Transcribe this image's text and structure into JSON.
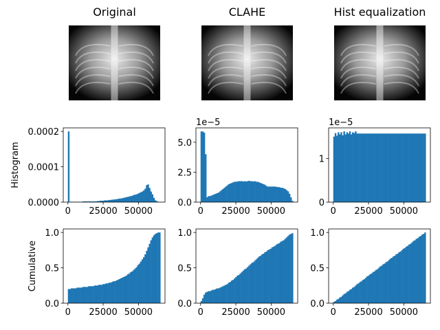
{
  "chart_data": [
    {
      "type": "image",
      "title": "Original"
    },
    {
      "type": "image",
      "title": "CLAHE"
    },
    {
      "type": "image",
      "title": "Hist equalization"
    },
    {
      "type": "histogram",
      "ylabel": "Histogram",
      "color": "#1f77b4",
      "bins": [
        0,
        1024,
        2048,
        3072,
        4096,
        5120,
        6144,
        7168,
        8192,
        9216,
        10240,
        11264,
        12288,
        13312,
        14336,
        15360,
        16384,
        17408,
        18432,
        19456,
        20480,
        21504,
        22528,
        23552,
        24576,
        25600,
        26624,
        27648,
        28672,
        29696,
        30720,
        31744,
        32768,
        33792,
        34816,
        35840,
        36864,
        37888,
        38912,
        39936,
        40960,
        41984,
        43008,
        44032,
        45056,
        46080,
        47104,
        48128,
        49152,
        50176,
        51200,
        52224,
        53248,
        54272,
        55296,
        56320,
        57344,
        58368,
        59392,
        60416,
        61440,
        62464,
        63488,
        64512,
        65536
      ],
      "values": [
        0.0002,
        1e-06,
        1e-06,
        1e-06,
        1e-06,
        1e-06,
        1e-06,
        1e-06,
        1e-06,
        1e-06,
        2e-06,
        2e-06,
        2e-06,
        2e-06,
        2e-06,
        2e-06,
        2e-06,
        2e-06,
        2e-06,
        2e-06,
        3e-06,
        3e-06,
        4e-06,
        4e-06,
        4e-06,
        5e-06,
        5e-06,
        5e-06,
        6e-06,
        6e-06,
        7e-06,
        7e-06,
        8e-06,
        8e-06,
        9e-06,
        1e-05,
        1e-05,
        1.1e-05,
        1.2e-05,
        1.3e-05,
        1.4e-05,
        1.5e-05,
        1.6e-05,
        1.7e-05,
        1.8e-05,
        2e-05,
        2.1e-05,
        2.2e-05,
        2.4e-05,
        2.6e-05,
        2.8e-05,
        3e-05,
        3.3e-05,
        3.8e-05,
        4.8e-05,
        5e-05,
        4e-05,
        3e-05,
        2.2e-05,
        1.2e-05,
        5e-06,
        3e-06,
        1e-06,
        1e-06
      ],
      "xlim": [
        -3277,
        68813
      ],
      "xticks": [
        0,
        25000,
        50000
      ],
      "ylim": [
        0,
        0.00021
      ],
      "yticks": [
        {
          "value": 0,
          "label": "0.0000"
        },
        {
          "value": 0.0001,
          "label": "0.0001"
        },
        {
          "value": 0.0002,
          "label": "0.0002"
        }
      ]
    },
    {
      "type": "histogram",
      "offset_text": "1e−5",
      "color": "#1f77b4",
      "bins": [
        0,
        1024,
        2048,
        3072,
        4096,
        5120,
        6144,
        7168,
        8192,
        9216,
        10240,
        11264,
        12288,
        13312,
        14336,
        15360,
        16384,
        17408,
        18432,
        19456,
        20480,
        21504,
        22528,
        23552,
        24576,
        25600,
        26624,
        27648,
        28672,
        29696,
        30720,
        31744,
        32768,
        33792,
        34816,
        35840,
        36864,
        37888,
        38912,
        39936,
        40960,
        41984,
        43008,
        44032,
        45056,
        46080,
        47104,
        48128,
        49152,
        50176,
        51200,
        52224,
        53248,
        54272,
        55296,
        56320,
        57344,
        58368,
        59392,
        60416,
        61440,
        62464,
        63488,
        64512,
        65536
      ],
      "values": [
        5.9,
        5.9,
        5.8,
        4.0,
        0.4,
        0.5,
        0.5,
        0.55,
        0.6,
        0.65,
        0.7,
        0.75,
        0.8,
        0.9,
        1.0,
        1.1,
        1.2,
        1.3,
        1.4,
        1.5,
        1.55,
        1.6,
        1.65,
        1.7,
        1.7,
        1.72,
        1.75,
        1.75,
        1.75,
        1.72,
        1.75,
        1.72,
        1.75,
        1.78,
        1.75,
        1.75,
        1.72,
        1.75,
        1.7,
        1.7,
        1.65,
        1.6,
        1.55,
        1.5,
        1.45,
        1.35,
        1.3,
        1.3,
        1.3,
        1.3,
        1.3,
        1.3,
        1.28,
        1.25,
        1.25,
        1.2,
        1.2,
        1.15,
        1.1,
        1.0,
        0.9,
        0.7,
        0.4,
        0.1
      ],
      "xlim": [
        -3277,
        68813
      ],
      "xticks": [
        0,
        25000,
        50000
      ],
      "ylim": [
        0,
        6.2
      ],
      "yticks": [
        {
          "value": 0,
          "label": "0.0"
        },
        2.5,
        {
          "value": 5,
          "label": "5.0"
        }
      ]
    },
    {
      "type": "histogram",
      "offset_text": "1e−5",
      "color": "#1f77b4",
      "bins": [
        0,
        1024,
        2048,
        3072,
        4096,
        5120,
        6144,
        7168,
        8192,
        9216,
        10240,
        11264,
        12288,
        13312,
        14336,
        15360,
        16384,
        17408,
        18432,
        19456,
        20480,
        21504,
        22528,
        23552,
        24576,
        25600,
        26624,
        27648,
        28672,
        29696,
        30720,
        31744,
        32768,
        33792,
        34816,
        35840,
        36864,
        37888,
        38912,
        39936,
        40960,
        41984,
        43008,
        44032,
        45056,
        46080,
        47104,
        48128,
        49152,
        50176,
        51200,
        52224,
        53248,
        54272,
        55296,
        56320,
        57344,
        58368,
        59392,
        60416,
        61440,
        62464,
        63488,
        64512,
        65536
      ],
      "values": [
        1.5,
        1.58,
        1.52,
        1.6,
        1.55,
        1.6,
        1.53,
        1.62,
        1.55,
        1.6,
        1.57,
        1.62,
        1.55,
        1.6,
        1.58,
        1.62,
        1.57,
        1.57,
        1.57,
        1.57,
        1.57,
        1.57,
        1.57,
        1.57,
        1.57,
        1.57,
        1.57,
        1.57,
        1.57,
        1.57,
        1.57,
        1.57,
        1.57,
        1.57,
        1.57,
        1.57,
        1.57,
        1.57,
        1.57,
        1.57,
        1.57,
        1.57,
        1.57,
        1.57,
        1.57,
        1.57,
        1.57,
        1.57,
        1.57,
        1.57,
        1.57,
        1.57,
        1.57,
        1.57,
        1.57,
        1.57,
        1.57,
        1.57,
        1.57,
        1.57,
        1.57,
        1.57,
        1.57,
        1.57
      ],
      "xlim": [
        -3277,
        68813
      ],
      "xticks": [
        0,
        25000,
        50000
      ],
      "ylim": [
        0,
        1.7
      ],
      "yticks": [
        0,
        1
      ]
    },
    {
      "type": "histogram",
      "ylabel": "Cumulative",
      "color": "#1f77b4",
      "bins": [
        0,
        1024,
        2048,
        3072,
        4096,
        5120,
        6144,
        7168,
        8192,
        9216,
        10240,
        11264,
        12288,
        13312,
        14336,
        15360,
        16384,
        17408,
        18432,
        19456,
        20480,
        21504,
        22528,
        23552,
        24576,
        25600,
        26624,
        27648,
        28672,
        29696,
        30720,
        31744,
        32768,
        33792,
        34816,
        35840,
        36864,
        37888,
        38912,
        39936,
        40960,
        41984,
        43008,
        44032,
        45056,
        46080,
        47104,
        48128,
        49152,
        50176,
        51200,
        52224,
        53248,
        54272,
        55296,
        56320,
        57344,
        58368,
        59392,
        60416,
        61440,
        62464,
        63488,
        64512,
        65536
      ],
      "values": [
        0.2,
        0.2,
        0.21,
        0.21,
        0.21,
        0.21,
        0.22,
        0.22,
        0.22,
        0.22,
        0.23,
        0.23,
        0.23,
        0.23,
        0.24,
        0.24,
        0.24,
        0.24,
        0.25,
        0.25,
        0.25,
        0.26,
        0.26,
        0.26,
        0.27,
        0.27,
        0.28,
        0.28,
        0.29,
        0.29,
        0.3,
        0.31,
        0.31,
        0.32,
        0.33,
        0.34,
        0.35,
        0.36,
        0.37,
        0.38,
        0.39,
        0.41,
        0.42,
        0.44,
        0.45,
        0.47,
        0.49,
        0.51,
        0.54,
        0.56,
        0.59,
        0.62,
        0.65,
        0.69,
        0.74,
        0.79,
        0.84,
        0.89,
        0.93,
        0.96,
        0.98,
        0.99,
        1.0,
        1.0
      ],
      "xlim": [
        -3277,
        68813
      ],
      "xticks": [
        0,
        25000,
        50000
      ],
      "ylim": [
        0,
        1.05
      ],
      "yticks": [
        {
          "value": 0,
          "label": "0.0"
        },
        0.5,
        {
          "value": 1,
          "label": "1.0"
        }
      ]
    },
    {
      "type": "histogram",
      "color": "#1f77b4",
      "bins": [
        0,
        1024,
        2048,
        3072,
        4096,
        5120,
        6144,
        7168,
        8192,
        9216,
        10240,
        11264,
        12288,
        13312,
        14336,
        15360,
        16384,
        17408,
        18432,
        19456,
        20480,
        21504,
        22528,
        23552,
        24576,
        25600,
        26624,
        27648,
        28672,
        29696,
        30720,
        31744,
        32768,
        33792,
        34816,
        35840,
        36864,
        37888,
        38912,
        39936,
        40960,
        41984,
        43008,
        44032,
        45056,
        46080,
        47104,
        48128,
        49152,
        50176,
        51200,
        52224,
        53248,
        54272,
        55296,
        56320,
        57344,
        58368,
        59392,
        60416,
        61440,
        62464,
        63488,
        64512,
        65536
      ],
      "values": [
        0.03,
        0.07,
        0.12,
        0.15,
        0.16,
        0.17,
        0.17,
        0.18,
        0.19,
        0.19,
        0.2,
        0.21,
        0.21,
        0.22,
        0.23,
        0.24,
        0.25,
        0.26,
        0.27,
        0.29,
        0.3,
        0.32,
        0.33,
        0.35,
        0.37,
        0.39,
        0.4,
        0.42,
        0.44,
        0.46,
        0.48,
        0.49,
        0.51,
        0.53,
        0.55,
        0.57,
        0.58,
        0.6,
        0.62,
        0.64,
        0.66,
        0.67,
        0.69,
        0.7,
        0.72,
        0.73,
        0.75,
        0.76,
        0.77,
        0.79,
        0.8,
        0.81,
        0.83,
        0.84,
        0.85,
        0.87,
        0.88,
        0.89,
        0.91,
        0.93,
        0.95,
        0.97,
        0.98,
        0.99
      ],
      "xlim": [
        -3277,
        68813
      ],
      "xticks": [
        0,
        25000,
        50000
      ],
      "ylim": [
        0,
        1.05
      ],
      "yticks": [
        {
          "value": 0,
          "label": "0.0"
        },
        0.5,
        {
          "value": 1,
          "label": "1.0"
        }
      ]
    },
    {
      "type": "histogram",
      "color": "#1f77b4",
      "bins": [
        0,
        1024,
        2048,
        3072,
        4096,
        5120,
        6144,
        7168,
        8192,
        9216,
        10240,
        11264,
        12288,
        13312,
        14336,
        15360,
        16384,
        17408,
        18432,
        19456,
        20480,
        21504,
        22528,
        23552,
        24576,
        25600,
        26624,
        27648,
        28672,
        29696,
        30720,
        31744,
        32768,
        33792,
        34816,
        35840,
        36864,
        37888,
        38912,
        39936,
        40960,
        41984,
        43008,
        44032,
        45056,
        46080,
        47104,
        48128,
        49152,
        50176,
        51200,
        52224,
        53248,
        54272,
        55296,
        56320,
        57344,
        58368,
        59392,
        60416,
        61440,
        62464,
        63488,
        64512,
        65536
      ],
      "values": [
        0.02,
        0.03,
        0.05,
        0.06,
        0.08,
        0.09,
        0.11,
        0.13,
        0.14,
        0.16,
        0.17,
        0.19,
        0.2,
        0.22,
        0.23,
        0.25,
        0.27,
        0.28,
        0.3,
        0.31,
        0.33,
        0.34,
        0.36,
        0.38,
        0.39,
        0.41,
        0.42,
        0.44,
        0.45,
        0.47,
        0.48,
        0.5,
        0.52,
        0.53,
        0.55,
        0.56,
        0.58,
        0.59,
        0.61,
        0.63,
        0.64,
        0.66,
        0.67,
        0.69,
        0.7,
        0.72,
        0.73,
        0.75,
        0.77,
        0.78,
        0.8,
        0.81,
        0.83,
        0.84,
        0.86,
        0.88,
        0.89,
        0.91,
        0.92,
        0.94,
        0.95,
        0.97,
        0.98,
        1.0
      ],
      "xlim": [
        -3277,
        68813
      ],
      "xticks": [
        0,
        25000,
        50000
      ],
      "ylim": [
        0,
        1.05
      ],
      "yticks": [
        {
          "value": 0,
          "label": "0.0"
        },
        0.5,
        {
          "value": 1,
          "label": "1.0"
        }
      ]
    }
  ]
}
